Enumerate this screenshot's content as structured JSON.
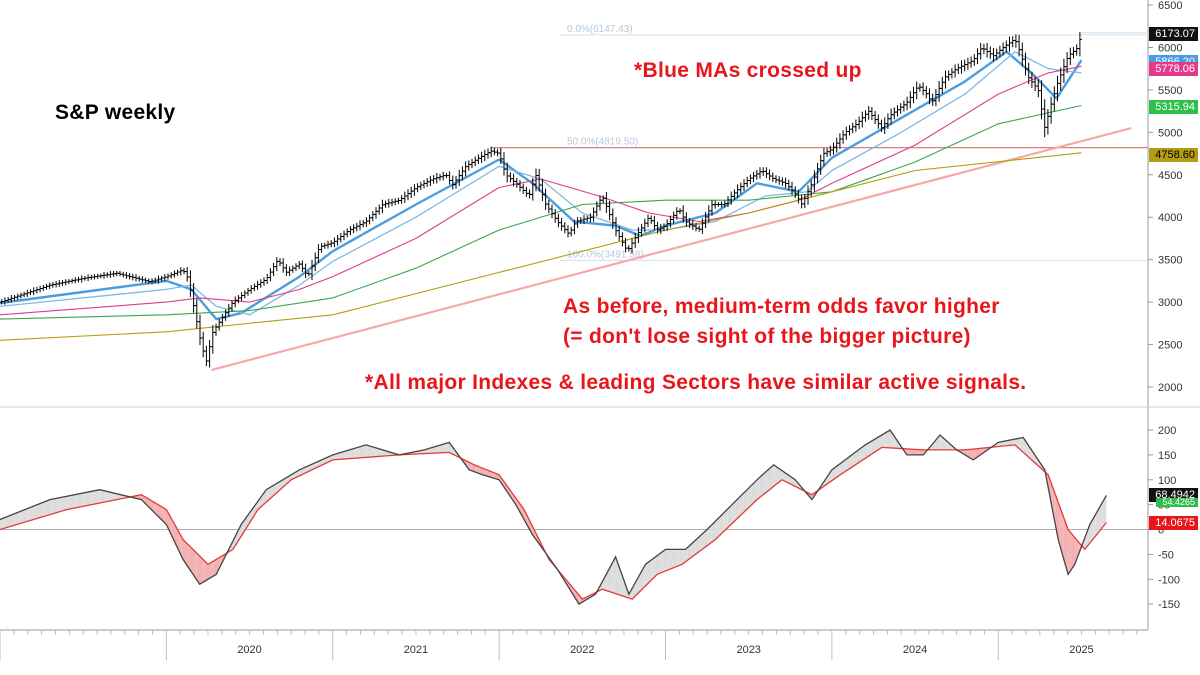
{
  "chart_data": {
    "type": "line",
    "title": "S&P weekly",
    "annotations": {
      "blue_mas": "*Blue MAs crossed up",
      "line1": "As before, medium-term odds favor higher",
      "line2": "(= don't lose sight of the bigger picture)",
      "line3": "*All major Indexes & leading Sectors have similar active signals."
    },
    "price_axis": {
      "ylim": [
        2000,
        6500
      ],
      "ticks": [
        2000,
        2500,
        3000,
        3500,
        4000,
        4500,
        5000,
        5500,
        6000,
        6500
      ]
    },
    "osc_axis": {
      "ylim": [
        -185,
        230
      ],
      "ticks": [
        -150,
        -100,
        -50,
        0,
        50,
        100,
        150,
        200
      ],
      "tick_labels": [
        "-150",
        "-100",
        "-50",
        "0",
        "50",
        "100",
        "150",
        "200"
      ]
    },
    "x_axis_labels": [
      "2020",
      "2021",
      "2022",
      "2023",
      "2024",
      "2025"
    ],
    "price_close": [
      [
        2019.0,
        3000
      ],
      [
        2019.3,
        3200
      ],
      [
        2019.5,
        3280
      ],
      [
        2019.7,
        3340
      ],
      [
        2019.9,
        3240
      ],
      [
        2020.0,
        3300
      ],
      [
        2020.1,
        3380
      ],
      [
        2020.13,
        3280
      ],
      [
        2020.17,
        2900
      ],
      [
        2020.21,
        2500
      ],
      [
        2020.24,
        2300
      ],
      [
        2020.28,
        2650
      ],
      [
        2020.33,
        2800
      ],
      [
        2020.4,
        3000
      ],
      [
        2020.5,
        3150
      ],
      [
        2020.6,
        3270
      ],
      [
        2020.67,
        3500
      ],
      [
        2020.72,
        3350
      ],
      [
        2020.8,
        3450
      ],
      [
        2020.85,
        3300
      ],
      [
        2020.92,
        3650
      ],
      [
        2021.0,
        3700
      ],
      [
        2021.1,
        3850
      ],
      [
        2021.2,
        3950
      ],
      [
        2021.3,
        4150
      ],
      [
        2021.4,
        4200
      ],
      [
        2021.5,
        4350
      ],
      [
        2021.6,
        4450
      ],
      [
        2021.68,
        4500
      ],
      [
        2021.72,
        4380
      ],
      [
        2021.8,
        4600
      ],
      [
        2021.88,
        4700
      ],
      [
        2021.95,
        4780
      ],
      [
        2022.0,
        4750
      ],
      [
        2022.04,
        4500
      ],
      [
        2022.1,
        4400
      ],
      [
        2022.18,
        4250
      ],
      [
        2022.22,
        4500
      ],
      [
        2022.28,
        4150
      ],
      [
        2022.35,
        3950
      ],
      [
        2022.42,
        3800
      ],
      [
        2022.46,
        3950
      ],
      [
        2022.55,
        4000
      ],
      [
        2022.62,
        4250
      ],
      [
        2022.7,
        3850
      ],
      [
        2022.77,
        3600
      ],
      [
        2022.83,
        3800
      ],
      [
        2022.9,
        4000
      ],
      [
        2022.95,
        3850
      ],
      [
        2023.0,
        3900
      ],
      [
        2023.08,
        4100
      ],
      [
        2023.12,
        3950
      ],
      [
        2023.2,
        3850
      ],
      [
        2023.28,
        4150
      ],
      [
        2023.35,
        4150
      ],
      [
        2023.42,
        4300
      ],
      [
        2023.5,
        4450
      ],
      [
        2023.58,
        4550
      ],
      [
        2023.65,
        4450
      ],
      [
        2023.72,
        4400
      ],
      [
        2023.77,
        4300
      ],
      [
        2023.82,
        4150
      ],
      [
        2023.88,
        4400
      ],
      [
        2023.95,
        4750
      ],
      [
        2024.0,
        4800
      ],
      [
        2024.08,
        5000
      ],
      [
        2024.15,
        5100
      ],
      [
        2024.22,
        5250
      ],
      [
        2024.3,
        5050
      ],
      [
        2024.35,
        5200
      ],
      [
        2024.45,
        5350
      ],
      [
        2024.52,
        5550
      ],
      [
        2024.57,
        5450
      ],
      [
        2024.6,
        5350
      ],
      [
        2024.68,
        5650
      ],
      [
        2024.75,
        5750
      ],
      [
        2024.85,
        5850
      ],
      [
        2024.9,
        6000
      ],
      [
        2024.97,
        5900
      ],
      [
        2025.03,
        6000
      ],
      [
        2025.1,
        6100
      ],
      [
        2025.13,
        5950
      ],
      [
        2025.18,
        5650
      ],
      [
        2025.24,
        5500
      ],
      [
        2025.28,
        5050
      ],
      [
        2025.32,
        5350
      ],
      [
        2025.36,
        5600
      ],
      [
        2025.42,
        5900
      ],
      [
        2025.48,
        6000
      ],
      [
        2025.5,
        6173.07
      ]
    ],
    "series": [
      {
        "values": [
          [
            2019.0,
            2990
          ],
          [
            2020.0,
            3250
          ],
          [
            2020.15,
            3150
          ],
          [
            2020.3,
            2800
          ],
          [
            2020.45,
            2870
          ],
          [
            2020.8,
            3300
          ],
          [
            2021.0,
            3600
          ],
          [
            2021.5,
            4150
          ],
          [
            2022.0,
            4680
          ],
          [
            2022.2,
            4400
          ],
          [
            2022.45,
            3950
          ],
          [
            2022.7,
            3900
          ],
          [
            2022.85,
            3780
          ],
          [
            2023.0,
            3900
          ],
          [
            2023.3,
            4050
          ],
          [
            2023.55,
            4400
          ],
          [
            2023.8,
            4300
          ],
          [
            2024.0,
            4700
          ],
          [
            2024.4,
            5150
          ],
          [
            2024.8,
            5600
          ],
          [
            2025.05,
            5950
          ],
          [
            2025.2,
            5700
          ],
          [
            2025.35,
            5400
          ],
          [
            2025.5,
            5850
          ]
        ]
      },
      {
        "values": [
          [
            2019.0,
            2950
          ],
          [
            2020.0,
            3150
          ],
          [
            2020.15,
            3200
          ],
          [
            2020.3,
            2950
          ],
          [
            2020.5,
            2850
          ],
          [
            2020.8,
            3200
          ],
          [
            2021.0,
            3480
          ],
          [
            2021.5,
            4000
          ],
          [
            2022.0,
            4600
          ],
          [
            2022.25,
            4450
          ],
          [
            2022.5,
            4050
          ],
          [
            2022.8,
            3850
          ],
          [
            2023.0,
            3850
          ],
          [
            2023.3,
            3950
          ],
          [
            2023.6,
            4250
          ],
          [
            2023.85,
            4300
          ],
          [
            2024.0,
            4550
          ],
          [
            2024.4,
            4980
          ],
          [
            2024.8,
            5450
          ],
          [
            2025.1,
            5950
          ],
          [
            2025.3,
            5750
          ],
          [
            2025.5,
            5700
          ]
        ]
      },
      {
        "values": [
          [
            2019.0,
            2850
          ],
          [
            2020.0,
            3000
          ],
          [
            2020.2,
            3050
          ],
          [
            2020.5,
            3000
          ],
          [
            2020.8,
            3150
          ],
          [
            2021.0,
            3300
          ],
          [
            2021.5,
            3750
          ],
          [
            2022.0,
            4350
          ],
          [
            2022.25,
            4450
          ],
          [
            2022.6,
            4250
          ],
          [
            2022.9,
            4050
          ],
          [
            2023.2,
            3950
          ],
          [
            2023.5,
            4050
          ],
          [
            2023.8,
            4200
          ],
          [
            2024.0,
            4400
          ],
          [
            2024.5,
            4850
          ],
          [
            2025.0,
            5450
          ],
          [
            2025.3,
            5700
          ],
          [
            2025.5,
            5778.06
          ]
        ]
      },
      {
        "values": [
          [
            2019.0,
            2800
          ],
          [
            2020.0,
            2850
          ],
          [
            2020.5,
            2900
          ],
          [
            2021.0,
            3050
          ],
          [
            2021.5,
            3400
          ],
          [
            2022.0,
            3850
          ],
          [
            2022.5,
            4150
          ],
          [
            2023.0,
            4200
          ],
          [
            2023.5,
            4200
          ],
          [
            2024.0,
            4300
          ],
          [
            2024.5,
            4650
          ],
          [
            2025.0,
            5100
          ],
          [
            2025.5,
            5315.94
          ]
        ]
      },
      {
        "values": [
          [
            2019.0,
            2550
          ],
          [
            2020.0,
            2650
          ],
          [
            2021.0,
            2850
          ],
          [
            2022.0,
            3350
          ],
          [
            2022.5,
            3600
          ],
          [
            2023.0,
            3850
          ],
          [
            2023.5,
            4050
          ],
          [
            2024.0,
            4300
          ],
          [
            2024.5,
            4550
          ],
          [
            2025.5,
            4758.6
          ]
        ]
      }
    ],
    "trendline": [
      [
        2020.27,
        2200
      ],
      [
        2025.8,
        5050
      ]
    ],
    "resistance": 4819.5,
    "fib_levels": [
      {
        "label": "0.0%(6147.43)",
        "value": 6147.43
      },
      {
        "label": "50.0%(4819.50)",
        "value": 4819.5
      },
      {
        "label": "100.0%(3491.58)",
        "value": 3491.58
      }
    ],
    "osc_fast": [
      [
        2019.0,
        20
      ],
      [
        2019.3,
        60
      ],
      [
        2019.6,
        80
      ],
      [
        2019.85,
        60
      ],
      [
        2020.0,
        10
      ],
      [
        2020.1,
        -60
      ],
      [
        2020.2,
        -110
      ],
      [
        2020.3,
        -90
      ],
      [
        2020.45,
        10
      ],
      [
        2020.6,
        80
      ],
      [
        2020.8,
        120
      ],
      [
        2021.0,
        150
      ],
      [
        2021.2,
        170
      ],
      [
        2021.4,
        150
      ],
      [
        2021.55,
        160
      ],
      [
        2021.7,
        175
      ],
      [
        2021.82,
        120
      ],
      [
        2021.9,
        110
      ],
      [
        2022.0,
        100
      ],
      [
        2022.1,
        50
      ],
      [
        2022.2,
        -10
      ],
      [
        2022.35,
        -80
      ],
      [
        2022.48,
        -150
      ],
      [
        2022.58,
        -130
      ],
      [
        2022.7,
        -55
      ],
      [
        2022.78,
        -130
      ],
      [
        2022.88,
        -70
      ],
      [
        2023.0,
        -40
      ],
      [
        2023.12,
        -40
      ],
      [
        2023.25,
        0
      ],
      [
        2023.4,
        50
      ],
      [
        2023.55,
        100
      ],
      [
        2023.65,
        130
      ],
      [
        2023.78,
        100
      ],
      [
        2023.88,
        60
      ],
      [
        2024.0,
        120
      ],
      [
        2024.2,
        170
      ],
      [
        2024.35,
        200
      ],
      [
        2024.45,
        150
      ],
      [
        2024.55,
        150
      ],
      [
        2024.65,
        190
      ],
      [
        2024.75,
        160
      ],
      [
        2024.85,
        140
      ],
      [
        2025.0,
        175
      ],
      [
        2025.15,
        185
      ],
      [
        2025.28,
        120
      ],
      [
        2025.36,
        -20
      ],
      [
        2025.42,
        -90
      ],
      [
        2025.46,
        -70
      ],
      [
        2025.55,
        10
      ],
      [
        2025.65,
        68.4942
      ]
    ],
    "osc_slow": [
      [
        2019.0,
        0
      ],
      [
        2019.4,
        40
      ],
      [
        2019.85,
        70
      ],
      [
        2020.0,
        40
      ],
      [
        2020.1,
        -20
      ],
      [
        2020.25,
        -70
      ],
      [
        2020.4,
        -40
      ],
      [
        2020.55,
        40
      ],
      [
        2020.75,
        100
      ],
      [
        2021.0,
        140
      ],
      [
        2021.4,
        150
      ],
      [
        2021.7,
        155
      ],
      [
        2021.85,
        130
      ],
      [
        2022.0,
        110
      ],
      [
        2022.15,
        40
      ],
      [
        2022.3,
        -60
      ],
      [
        2022.5,
        -140
      ],
      [
        2022.62,
        -120
      ],
      [
        2022.8,
        -140
      ],
      [
        2022.95,
        -90
      ],
      [
        2023.1,
        -70
      ],
      [
        2023.3,
        -20
      ],
      [
        2023.55,
        60
      ],
      [
        2023.7,
        100
      ],
      [
        2023.88,
        70
      ],
      [
        2024.05,
        110
      ],
      [
        2024.3,
        165
      ],
      [
        2024.55,
        160
      ],
      [
        2024.8,
        160
      ],
      [
        2025.1,
        170
      ],
      [
        2025.3,
        110
      ],
      [
        2025.42,
        0
      ],
      [
        2025.52,
        -40
      ],
      [
        2025.65,
        14.0675
      ]
    ],
    "last_labels": [
      "6173.07",
      "5866.20",
      "5778.06",
      "5315.94",
      "4758.60",
      "68.4942",
      "54.4265",
      "14.0675"
    ],
    "colors": {
      "price_bar": "#000000",
      "ma_blue": "#4a9de0",
      "ma_light_blue": "#7fb9e6",
      "ma_pink": "#e03c8a",
      "ma_green": "#3aa84a",
      "ma_olive": "#b39c14",
      "trendline": "#f4a9a9",
      "resistance": "#e07c7c",
      "osc_fast": "#444444",
      "osc_slow": "#e23a3a",
      "osc_fill_up": "#dcdcdc",
      "osc_fill_down": "#f3b0b0",
      "annotation": "#e8161b"
    }
  }
}
